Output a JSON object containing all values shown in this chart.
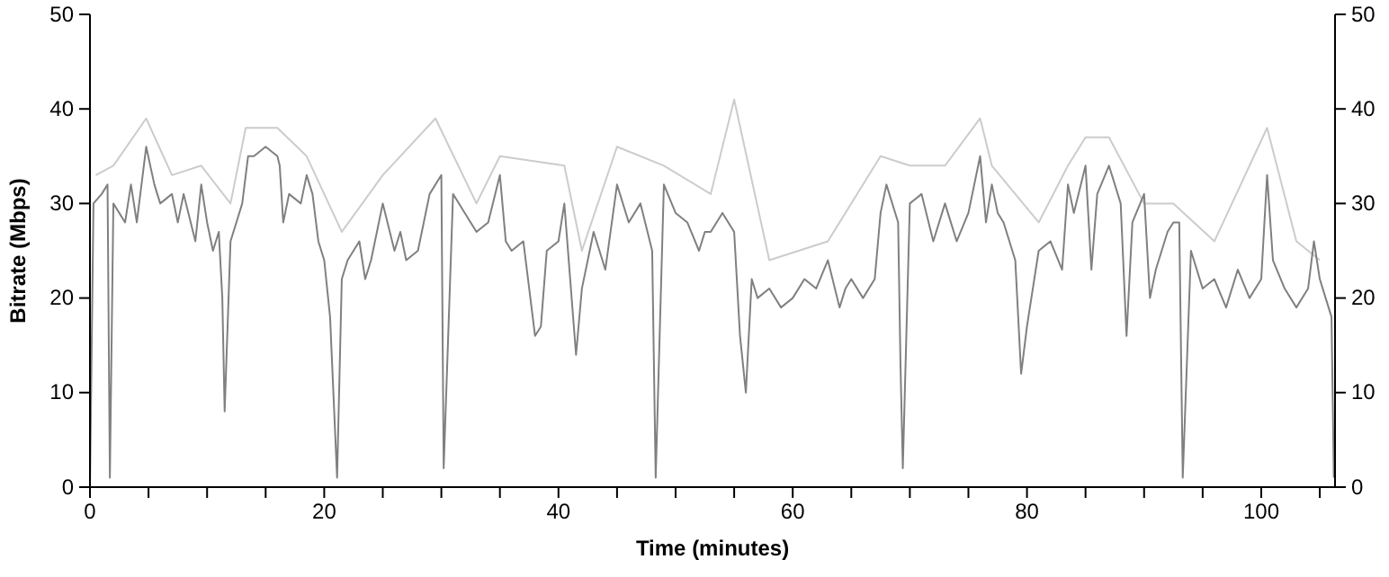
{
  "chart_data": {
    "type": "line",
    "xlabel": "Time (minutes)",
    "ylabel": "Bitrate (Mbps)",
    "xlim": [
      0,
      106.3
    ],
    "ylim": [
      0,
      50
    ],
    "y2lim": [
      0,
      50
    ],
    "xticks": [
      0,
      {
        "value": 5,
        "label": null
      },
      20,
      {
        "value": 10,
        "label": null
      },
      {
        "value": 15,
        "label": null
      },
      {
        "value": 25,
        "label": null
      },
      {
        "value": 30,
        "label": null
      },
      {
        "value": 35,
        "label": null
      },
      40,
      {
        "value": 45,
        "label": null
      },
      {
        "value": 50,
        "label": null
      },
      {
        "value": 55,
        "label": null
      },
      60,
      {
        "value": 65,
        "label": null
      },
      {
        "value": 70,
        "label": null
      },
      {
        "value": 75,
        "label": null
      },
      80,
      {
        "value": 85,
        "label": null
      },
      {
        "value": 90,
        "label": null
      },
      {
        "value": 95,
        "label": null
      },
      100,
      {
        "value": 105,
        "label": null
      }
    ],
    "yticks": [
      0,
      10,
      20,
      30,
      40,
      50
    ],
    "y2ticks": [
      0,
      10,
      20,
      30,
      40,
      50
    ],
    "grid": false,
    "series": [
      {
        "color": "#cccccc",
        "x": [
          0.5,
          2,
          4.8,
          7,
          9.5,
          12,
          13.3,
          14.5,
          16,
          18.5,
          21.5,
          25,
          29.5,
          33,
          35,
          40.5,
          42,
          45,
          49,
          53,
          55,
          58,
          63,
          67.5,
          70,
          73,
          76,
          77,
          81,
          83.5,
          85,
          87,
          90,
          92.5,
          96,
          100.5,
          103,
          105
        ],
        "values": [
          33,
          34,
          39,
          33,
          34,
          30,
          38,
          38,
          38,
          35,
          27,
          33,
          39,
          30,
          35,
          34,
          25,
          36,
          34,
          31,
          41,
          24,
          26,
          35,
          34,
          34,
          39,
          34,
          28,
          34,
          37,
          37,
          30,
          30,
          26,
          38,
          26,
          24
        ]
      },
      {
        "color": "#808080",
        "x": [
          0,
          0.3,
          1,
          1.5,
          1.7,
          2,
          3,
          3.5,
          4,
          4.8,
          5.5,
          6,
          7,
          7.5,
          8,
          9,
          9.5,
          10,
          10.5,
          11,
          11.3,
          11.5,
          12,
          12.5,
          13,
          13.5,
          14,
          15,
          16,
          16.2,
          16.5,
          17,
          18,
          18.5,
          19,
          19.5,
          20,
          20.5,
          21.1,
          21.5,
          22,
          23,
          23.5,
          24,
          25,
          26,
          26.5,
          27,
          28,
          29,
          30,
          30.2,
          31,
          32,
          33,
          34,
          35,
          35.5,
          36,
          37,
          38,
          38.5,
          39,
          40,
          40.5,
          41,
          41.5,
          42,
          43,
          44,
          45,
          46,
          47,
          48,
          48.3,
          49,
          50,
          51,
          52,
          52.5,
          53,
          54,
          55,
          55.5,
          56,
          56.5,
          57,
          58,
          59,
          60,
          61,
          62,
          63,
          64,
          64.5,
          65,
          66,
          67,
          67.5,
          68,
          69,
          69.2,
          69.4,
          70,
          71,
          72,
          73,
          74,
          75,
          76,
          76.5,
          77,
          77.5,
          78,
          79,
          79.5,
          80,
          81,
          82,
          83,
          83.5,
          84,
          85,
          85.5,
          86,
          87,
          88,
          88.5,
          89,
          90,
          90.5,
          91,
          92,
          92.5,
          93,
          93.3,
          94,
          95,
          96,
          97,
          98,
          99,
          100,
          100.5,
          101,
          102,
          103,
          104,
          104.5,
          105,
          105.5,
          106,
          106.2
        ],
        "values": [
          0,
          30,
          31,
          32,
          1,
          30,
          28,
          32,
          28,
          36,
          32,
          30,
          31,
          28,
          31,
          26,
          32,
          28,
          25,
          27,
          20,
          8,
          26,
          28,
          30,
          35,
          35,
          36,
          35,
          34,
          28,
          31,
          30,
          33,
          31,
          26,
          24,
          18,
          1,
          22,
          24,
          26,
          22,
          24,
          30,
          25,
          27,
          24,
          25,
          31,
          33,
          2,
          31,
          29,
          27,
          28,
          33,
          26,
          25,
          26,
          16,
          17,
          25,
          26,
          30,
          22,
          14,
          21,
          27,
          23,
          32,
          28,
          30,
          25,
          1,
          32,
          29,
          28,
          25,
          27,
          27,
          29,
          27,
          16,
          10,
          22,
          20,
          21,
          19,
          20,
          22,
          21,
          24,
          19,
          21,
          22,
          20,
          22,
          29,
          32,
          28,
          13,
          2,
          30,
          31,
          26,
          30,
          26,
          29,
          35,
          28,
          32,
          29,
          28,
          24,
          12,
          17,
          25,
          26,
          23,
          32,
          29,
          34,
          23,
          31,
          34,
          30,
          16,
          28,
          31,
          20,
          23,
          27,
          28,
          28,
          1,
          25,
          21,
          22,
          19,
          23,
          20,
          22,
          33,
          24,
          21,
          19,
          21,
          26,
          22,
          20,
          18,
          1
        ]
      }
    ]
  }
}
